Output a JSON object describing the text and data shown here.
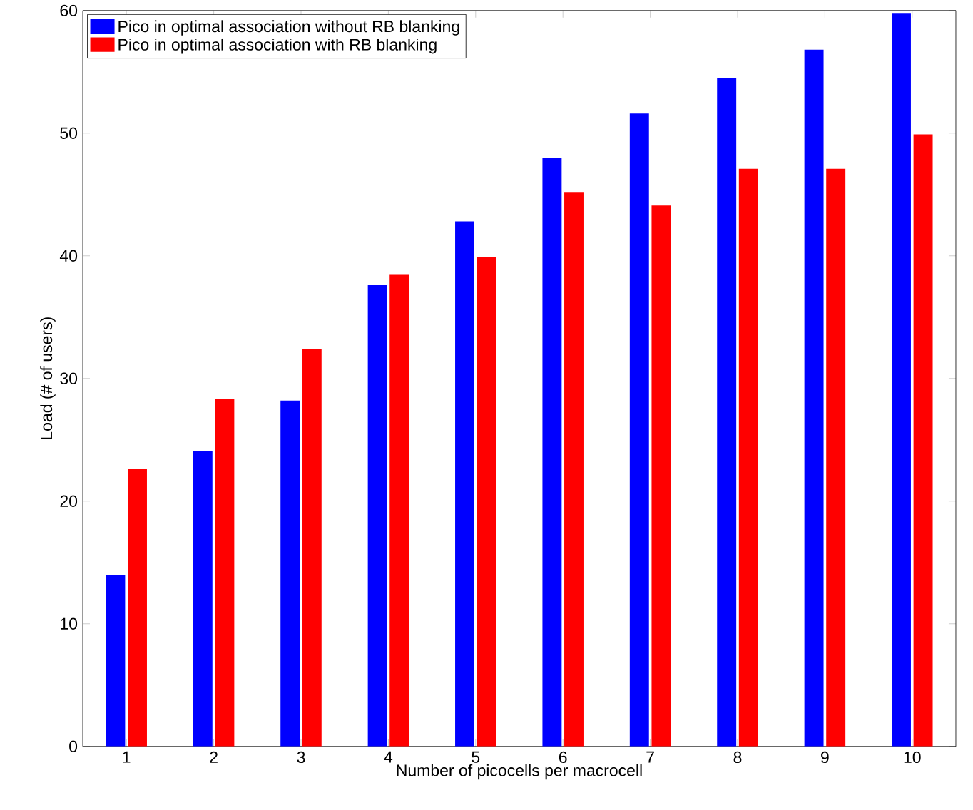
{
  "chart_data": {
    "type": "bar",
    "xlabel": "Number of picocells per macrocell",
    "ylabel": "Load (# of users)",
    "categories": [
      "1",
      "2",
      "3",
      "4",
      "5",
      "6",
      "7",
      "8",
      "9",
      "10"
    ],
    "series": [
      {
        "name": "Pico in optimal association without RB blanking",
        "color": "#0000ff",
        "values": [
          14,
          24.1,
          28.2,
          37.6,
          42.8,
          48,
          51.6,
          54.5,
          56.8,
          59.8
        ]
      },
      {
        "name": "Pico in optimal association with RB blanking",
        "color": "#ff0000",
        "values": [
          22.6,
          28.3,
          32.4,
          38.5,
          39.9,
          45.2,
          44.1,
          47.1,
          47.1,
          49.9
        ]
      }
    ],
    "ylim": [
      0,
      60
    ],
    "yticks": [
      0,
      10,
      20,
      30,
      40,
      50,
      60
    ],
    "legend": "top left"
  }
}
